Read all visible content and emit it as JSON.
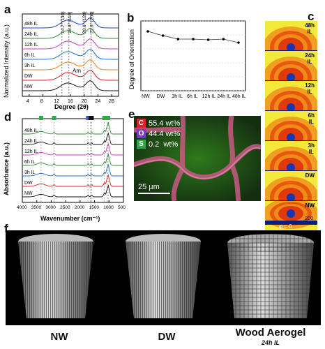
{
  "panel_labels": {
    "a": "a",
    "b": "b",
    "c": "c",
    "d": "d",
    "e": "e",
    "f": "f"
  },
  "panel_a": {
    "ylabel": "Normalized Intensity (a.u.)",
    "xlabel": "Degree (2θ)",
    "xticks": [
      "4",
      "8",
      "12",
      "16",
      "20",
      "24",
      "28"
    ],
    "peak_labels": [
      "14.7° [1̄10]",
      "16.6° [110]",
      "20.6° [120]",
      "22.6° [200]"
    ],
    "am_label": "Am",
    "series": [
      "48h IL",
      "24h IL",
      "12h IL",
      "6h IL",
      "3h IL",
      "DW",
      "NW"
    ],
    "colors": [
      "#1f3fbf",
      "#2e8b2e",
      "#c040c0",
      "#1a6fd0",
      "#e37f1f",
      "#d02020",
      "#111111"
    ]
  },
  "chart_data": {
    "type": "line",
    "title": "",
    "ylabel": "Degree of Orientation",
    "xlabel": "",
    "categories": [
      "NW",
      "DW",
      "3h IL",
      "6h IL",
      "12h IL",
      "24h IL",
      "48h IL"
    ],
    "values": [
      0.85,
      0.79,
      0.74,
      0.74,
      0.73,
      0.74,
      0.69
    ],
    "ylim": [
      0.0,
      1.0
    ],
    "yticks": [
      "0.0",
      "0.2",
      "0.4",
      "0.6",
      "0.8",
      "1.0"
    ],
    "grid": true
  },
  "panel_c": {
    "labels": [
      "48h\nIL",
      "24h\nIL",
      "12h\nIL",
      "6h\nIL",
      "3h\nIL",
      "DW",
      "NW"
    ],
    "annot_200": "200",
    "annot_phi": "φ = 0"
  },
  "panel_d": {
    "ylabel": "Absorbance (a.u.)",
    "xlabel": "Wavenumber (cm⁻¹)",
    "xticks": [
      "4000",
      "3500",
      "3000",
      "2500",
      "2000",
      "1500",
      "1000",
      "500"
    ],
    "series": [
      "48h IL",
      "24h IL",
      "12h IL",
      "6h IL",
      "3h IL",
      "DW",
      "NW"
    ],
    "colors": [
      "#2e8b2e",
      "#111111",
      "#c040c0",
      "#2e8b2e",
      "#1a6fd0",
      "#d02020",
      "#111111"
    ]
  },
  "panel_e": {
    "legend": [
      {
        "key": "C",
        "text": "55.4 wt%",
        "color": "#e0202a"
      },
      {
        "key": "O",
        "text": "44.4 wt%",
        "color": "#7a3cc0"
      },
      {
        "key": "S",
        "text": "0.2  wt%",
        "color": "#2fa84a"
      }
    ],
    "scale": "25 μm"
  },
  "panel_f": {
    "labels": [
      "NW",
      "DW",
      "Wood Aerogel"
    ],
    "sublabel": "24h IL"
  }
}
